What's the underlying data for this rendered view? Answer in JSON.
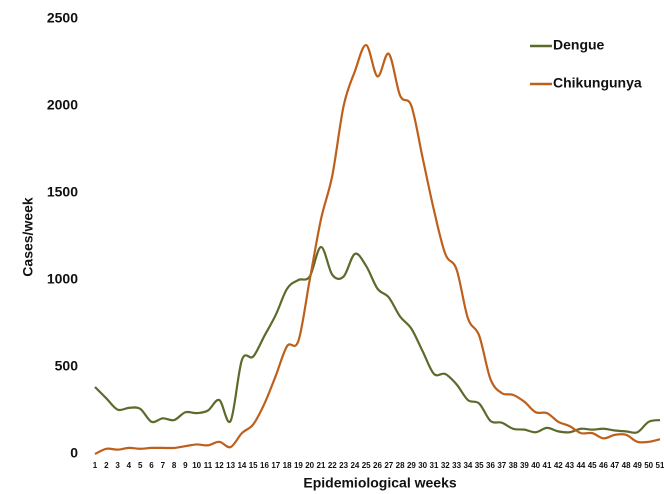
{
  "chart_data": {
    "type": "line",
    "x_label": "Epidemiological weeks",
    "y_label": "Cases/week",
    "categories": [
      "1",
      "2",
      "3",
      "4",
      "5",
      "6",
      "7",
      "8",
      "9",
      "10",
      "11",
      "12",
      "13",
      "14",
      "15",
      "16",
      "17",
      "18",
      "19",
      "20",
      "21",
      "22",
      "23",
      "24",
      "25",
      "26",
      "27",
      "28",
      "29",
      "30",
      "31",
      "32",
      "33",
      "34",
      "35",
      "36",
      "37",
      "38",
      "39",
      "40",
      "41",
      "42",
      "43",
      "44",
      "45",
      "46",
      "47",
      "48",
      "49",
      "50",
      "51"
    ],
    "series": [
      {
        "name": "Dengue",
        "color": "#5b6b2c",
        "values": [
          385,
          320,
          255,
          265,
          260,
          185,
          205,
          195,
          240,
          235,
          250,
          310,
          190,
          540,
          560,
          680,
          800,
          950,
          1000,
          1020,
          1190,
          1030,
          1020,
          1150,
          1080,
          950,
          900,
          790,
          720,
          590,
          460,
          460,
          400,
          310,
          290,
          190,
          180,
          145,
          140,
          125,
          150,
          130,
          125,
          145,
          140,
          145,
          135,
          130,
          125,
          185,
          195
        ]
      },
      {
        "name": "Chikungunya",
        "color": "#bf5f1c",
        "values": [
          0,
          30,
          25,
          35,
          30,
          35,
          35,
          35,
          45,
          55,
          50,
          70,
          40,
          120,
          170,
          290,
          450,
          620,
          650,
          1000,
          1350,
          1600,
          2000,
          2200,
          2350,
          2170,
          2300,
          2060,
          2000,
          1700,
          1400,
          1150,
          1060,
          780,
          680,
          430,
          350,
          340,
          300,
          240,
          235,
          185,
          160,
          120,
          120,
          90,
          110,
          110,
          70,
          70,
          85
        ]
      }
    ],
    "ylim": [
      0,
      2500
    ],
    "yticks": [
      0,
      500,
      1000,
      1500,
      2000,
      2500
    ],
    "legend": "upper-right"
  }
}
